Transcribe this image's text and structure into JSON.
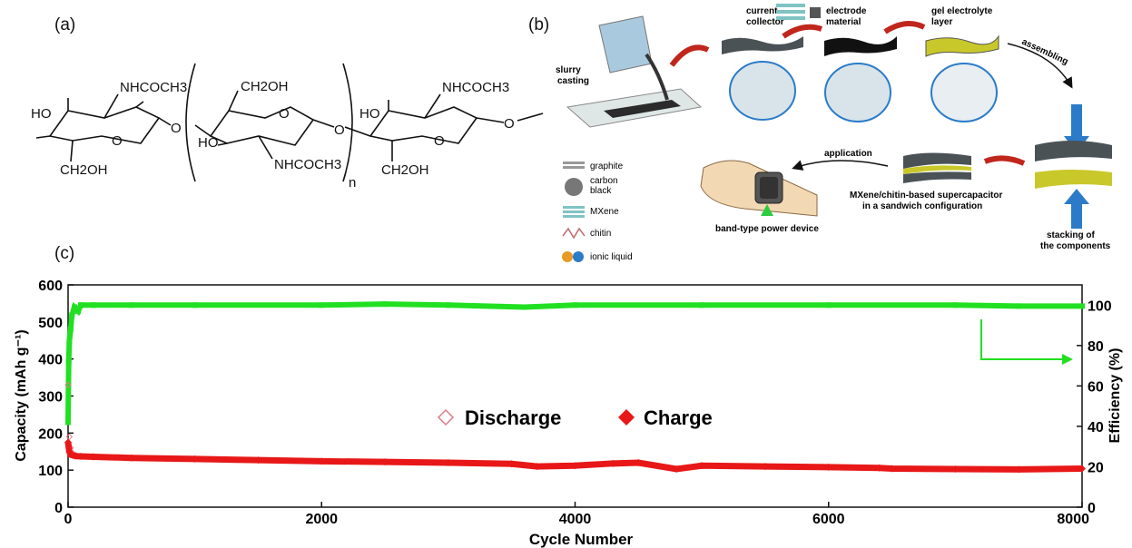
{
  "panels": {
    "a": "(a)",
    "b": "(b)",
    "c": "(c)"
  },
  "structure": {
    "left_top_group": "NHCOCH3",
    "left_ho": "HO",
    "left_ch2oh": "CH2OH",
    "mid_ch2oh": "CH2OH",
    "mid_ho": "HO",
    "mid_group": "NHCOCH3",
    "repeat_n": "n",
    "right_top_group": "NHCOCH3",
    "right_ho": "HO",
    "right_ch2oh": "CH2OH",
    "ring_o": "O",
    "link_o": "O"
  },
  "schematic": {
    "slurry": [
      "slurry",
      "casting"
    ],
    "collector": [
      "current",
      "collector"
    ],
    "electrode": [
      "electrode",
      "material"
    ],
    "gel": [
      "gel electrolyte",
      "layer"
    ],
    "assembling": "assembling",
    "application": "application",
    "device_caption": [
      "MXene/chitin-based supercapacitor",
      "in a sandwich configuration"
    ],
    "band": "band-type power device",
    "stacking": [
      "stacking of",
      "the components"
    ],
    "legend": [
      {
        "label": "graphite",
        "icon": "graphite-icon"
      },
      {
        "label": "carbon\nblack",
        "icon": "carbon-black-icon"
      },
      {
        "label": "MXene",
        "icon": "mxene-icon"
      },
      {
        "label": "chitin",
        "icon": "chitin-icon"
      },
      {
        "label": "ionic liquid",
        "icon": "ionic-liquid-icon"
      }
    ],
    "colors": {
      "arrow": "#c0261c",
      "blue": "#2b7bc8",
      "yellow": "#c9c82a",
      "sheet": "#4a5256"
    }
  },
  "chart_data": {
    "type": "scatter",
    "xlabel": "Cycle Number",
    "ylabel_left": "Capacity (mAh g⁻¹)",
    "ylabel_right": "Efficiency (%)",
    "xlim": [
      0,
      8000
    ],
    "ylim_left": [
      0,
      600
    ],
    "ylim_right": [
      0,
      110
    ],
    "x_ticks": [
      0,
      2000,
      4000,
      6000,
      8000
    ],
    "y_ticks_left": [
      0,
      100,
      200,
      300,
      400,
      500,
      600
    ],
    "y_ticks_right": [
      0,
      20,
      40,
      60,
      80,
      100
    ],
    "legend": [
      "Discharge",
      "Charge"
    ],
    "series": [
      {
        "name": "Discharge",
        "axis": "left",
        "color": "#e07a8a",
        "marker": "open-diamond",
        "x": [
          0,
          10,
          20,
          40,
          60,
          100,
          200,
          500,
          1000,
          1500,
          2000,
          2500,
          3000,
          3500,
          3700,
          4000,
          4300,
          4500,
          4800,
          5000,
          5500,
          6000,
          6400,
          6500,
          7000,
          7500,
          8000
        ],
        "y": [
          330,
          190,
          160,
          145,
          140,
          138,
          137,
          133,
          130,
          127,
          124,
          122,
          120,
          117,
          110,
          112,
          118,
          120,
          103,
          112,
          110,
          108,
          106,
          104,
          103,
          102,
          104
        ]
      },
      {
        "name": "Charge",
        "axis": "left",
        "color": "#e81818",
        "marker": "filled-diamond",
        "x": [
          0,
          10,
          20,
          40,
          60,
          100,
          200,
          500,
          1000,
          1500,
          2000,
          2500,
          3000,
          3500,
          3700,
          4000,
          4300,
          4500,
          4800,
          5000,
          5500,
          6000,
          6400,
          6500,
          7000,
          7500,
          8000
        ],
        "y": [
          175,
          150,
          142,
          140,
          138,
          137,
          136,
          133,
          130,
          127,
          124,
          122,
          120,
          117,
          110,
          112,
          118,
          120,
          103,
          112,
          110,
          108,
          106,
          104,
          103,
          102,
          104
        ]
      },
      {
        "name": "Efficiency",
        "axis": "right",
        "color": "#21e021",
        "marker": "filled-square",
        "x": [
          0,
          5,
          10,
          20,
          30,
          50,
          80,
          100,
          200,
          500,
          1000,
          2000,
          2500,
          3000,
          3600,
          4000,
          5000,
          6000,
          7000,
          7500,
          8000
        ],
        "y": [
          42,
          72,
          82,
          88,
          95,
          99,
          97,
          100,
          100,
          100,
          100,
          100,
          100.5,
          100,
          99,
          100,
          100,
          100,
          100,
          99.5,
          99.5
        ]
      }
    ],
    "arrow_to": "right-axis"
  }
}
